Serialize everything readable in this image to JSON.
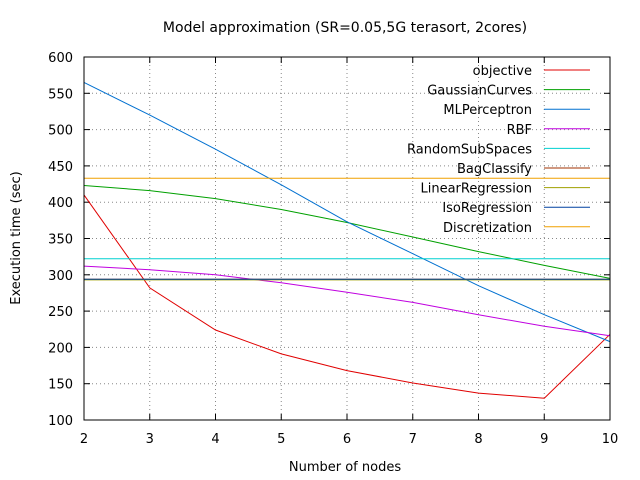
{
  "chart_data": {
    "type": "line",
    "title": "Model approximation (SR=0.05,5G terasort, 2cores)",
    "xlabel": "Number of nodes",
    "ylabel": "Execution time (sec)",
    "xlim": [
      2,
      10
    ],
    "ylim": [
      100,
      600
    ],
    "xticks": [
      2,
      3,
      4,
      5,
      6,
      7,
      8,
      9,
      10
    ],
    "yticks": [
      100,
      150,
      200,
      250,
      300,
      350,
      400,
      450,
      500,
      550,
      600
    ],
    "grid": true,
    "legend_position": "top-right",
    "x": [
      2,
      3,
      4,
      5,
      6,
      7,
      8,
      9,
      10
    ],
    "series": [
      {
        "name": "objective",
        "color": "#e00000",
        "values": [
          410,
          282,
          224,
          191,
          168,
          151,
          137,
          130,
          218
        ]
      },
      {
        "name": "GaussianCurves",
        "color": "#00a000",
        "values": [
          423,
          416,
          405,
          390,
          372,
          352,
          332,
          313,
          295
        ]
      },
      {
        "name": "MLPerceptron",
        "color": "#0070d0",
        "values": [
          565,
          520,
          473,
          424,
          373,
          329,
          285,
          245,
          208
        ]
      },
      {
        "name": "RBF",
        "color": "#c000e0",
        "values": [
          312,
          307,
          300,
          289,
          276,
          262,
          245,
          229,
          216
        ]
      },
      {
        "name": "RandomSubSpaces",
        "color": "#00d0d0",
        "values": [
          322,
          322,
          322,
          322,
          322,
          322,
          322,
          322,
          322
        ]
      },
      {
        "name": "BagClassify",
        "color": "#a03000",
        "values": [
          294,
          294,
          294,
          294,
          294,
          294,
          294,
          294,
          294
        ]
      },
      {
        "name": "LinearRegression",
        "color": "#a0a000",
        "values": [
          293,
          293,
          293,
          293,
          293,
          293,
          293,
          293,
          293
        ]
      },
      {
        "name": "IsoRegression",
        "color": "#0040a0",
        "values": [
          294,
          294,
          294,
          294,
          294,
          294,
          294,
          294,
          294
        ]
      },
      {
        "name": "Discretization",
        "color": "#f0a000",
        "values": [
          433,
          433,
          433,
          433,
          433,
          433,
          433,
          433,
          433
        ]
      }
    ]
  }
}
